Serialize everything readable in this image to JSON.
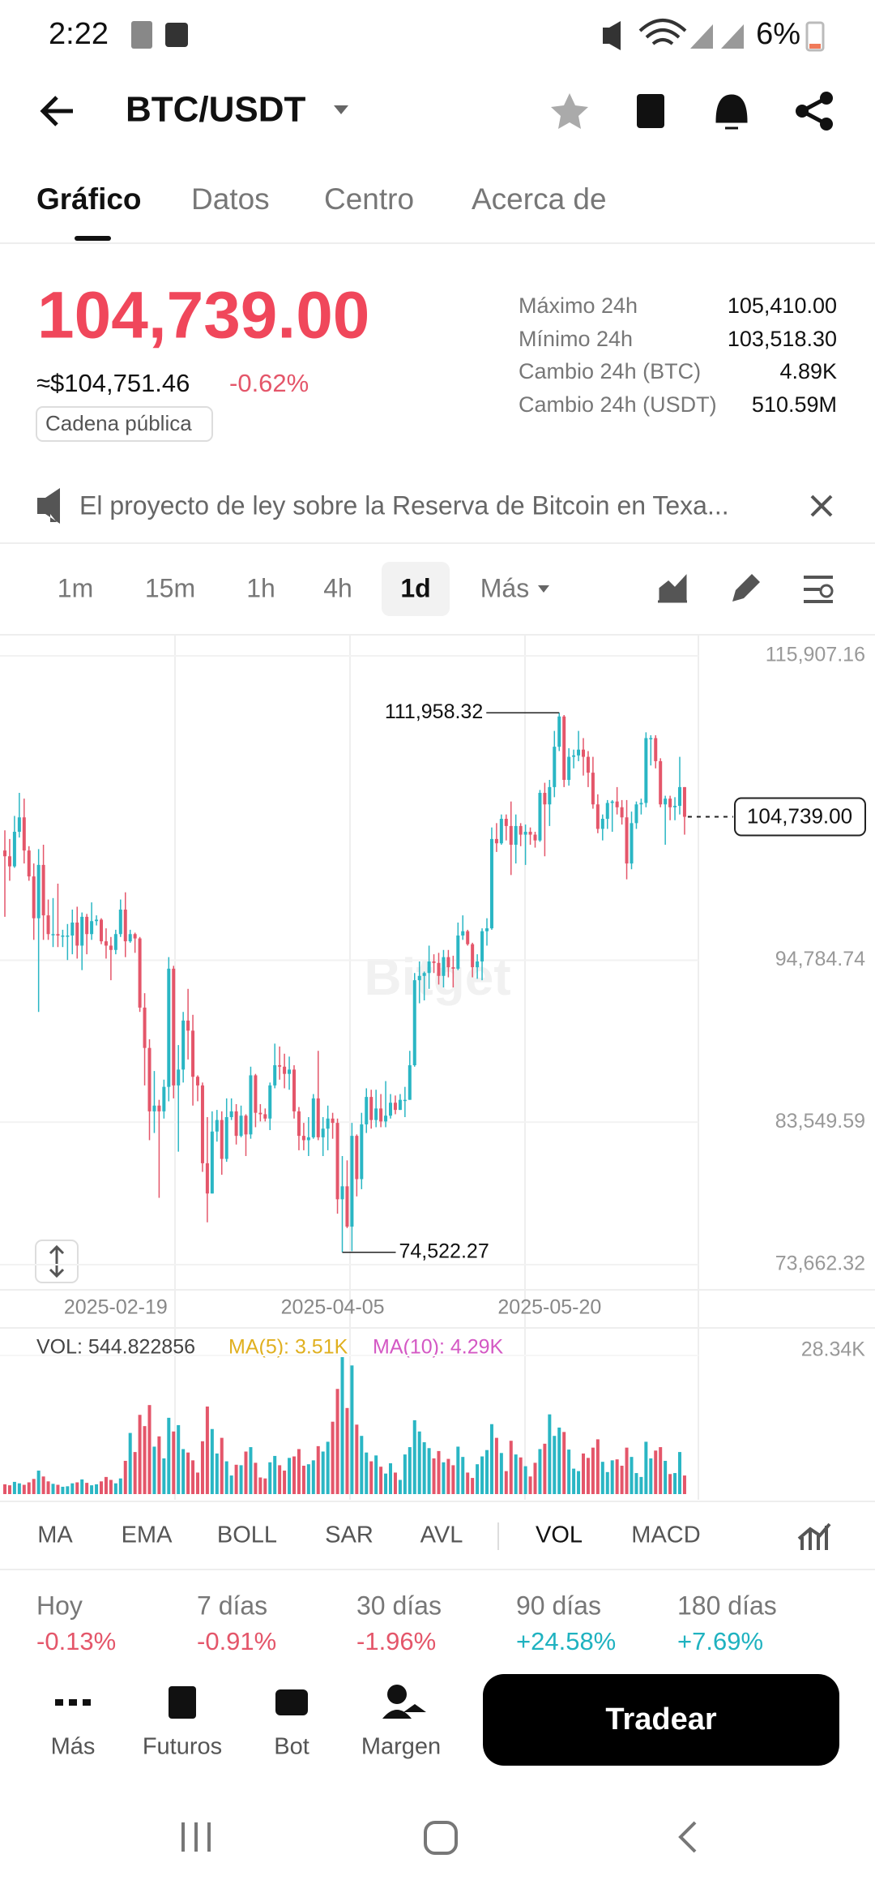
{
  "status": {
    "time": "2:22",
    "battery": "6%"
  },
  "header": {
    "title": "BTC/USDT"
  },
  "tabs": [
    "Gráfico",
    "Datos",
    "Centro",
    "Acerca de"
  ],
  "ticker": {
    "price": "104,739.00",
    "usd": "≈$104,751.46",
    "change": "-0.62%",
    "badge": "Cadena pública",
    "stats": [
      {
        "label": "Máximo 24h",
        "value": "105,410.00"
      },
      {
        "label": "Mínimo 24h",
        "value": "103,518.30"
      },
      {
        "label": "Cambio 24h (BTC)",
        "value": "4.89K"
      },
      {
        "label": "Cambio 24h (USDT)",
        "value": "510.59M"
      }
    ]
  },
  "news": "El proyecto de ley sobre la Reserva de Bitcoin en Texa...",
  "intervals": [
    "1m",
    "15m",
    "1h",
    "4h",
    "1d",
    "Más"
  ],
  "chart_data": {
    "type": "candlestick",
    "watermark": "Bitget",
    "up_color": "#2ab6c4",
    "down_color": "#e4566a",
    "ylim": [
      73662.32,
      115907.16
    ],
    "yticks": [
      {
        "value": 115907.16,
        "label": "115,907.16"
      },
      {
        "value": 94784.74,
        "label": "94,784.74"
      },
      {
        "value": 83549.59,
        "label": "83,549.59"
      },
      {
        "value": 73662.32,
        "label": "73,662.32"
      }
    ],
    "xticks": [
      "2025-02-19",
      "2025-04-05",
      "2025-05-20"
    ],
    "last_price": {
      "value": 104739,
      "label": "104,739.00"
    },
    "annotations": [
      {
        "value": 111958.32,
        "label": "111,958.32"
      },
      {
        "value": 74522.27,
        "label": "74,522.27"
      }
    ],
    "x": [
      "2025-01-27",
      "2025-01-28",
      "2025-01-29",
      "2025-01-30",
      "2025-01-31",
      "2025-02-01",
      "2025-02-02",
      "2025-02-03",
      "2025-02-04",
      "2025-02-05",
      "2025-02-06",
      "2025-02-07",
      "2025-02-08",
      "2025-02-09",
      "2025-02-10",
      "2025-02-11",
      "2025-02-12",
      "2025-02-13",
      "2025-02-14",
      "2025-02-15",
      "2025-02-16",
      "2025-02-17",
      "2025-02-18",
      "2025-02-19",
      "2025-02-20",
      "2025-02-21",
      "2025-02-22",
      "2025-02-23",
      "2025-02-24",
      "2025-02-25",
      "2025-02-26",
      "2025-02-27",
      "2025-02-28",
      "2025-03-01",
      "2025-03-02",
      "2025-03-03",
      "2025-03-04",
      "2025-03-05",
      "2025-03-06",
      "2025-03-07",
      "2025-03-08",
      "2025-03-09",
      "2025-03-10",
      "2025-03-11",
      "2025-03-12",
      "2025-03-13",
      "2025-03-14",
      "2025-03-15",
      "2025-03-16",
      "2025-03-17",
      "2025-03-18",
      "2025-03-19",
      "2025-03-20",
      "2025-03-21",
      "2025-03-22",
      "2025-03-23",
      "2025-03-24",
      "2025-03-25",
      "2025-03-26",
      "2025-03-27",
      "2025-03-28",
      "2025-03-29",
      "2025-03-30",
      "2025-03-31",
      "2025-04-01",
      "2025-04-02",
      "2025-04-03",
      "2025-04-04",
      "2025-04-05",
      "2025-04-06",
      "2025-04-07",
      "2025-04-08",
      "2025-04-09",
      "2025-04-10",
      "2025-04-11",
      "2025-04-12",
      "2025-04-13",
      "2025-04-14",
      "2025-04-15",
      "2025-04-16",
      "2025-04-17",
      "2025-04-18",
      "2025-04-19",
      "2025-04-20",
      "2025-04-21",
      "2025-04-22",
      "2025-04-23",
      "2025-04-24",
      "2025-04-25",
      "2025-04-26",
      "2025-04-27",
      "2025-04-28",
      "2025-04-29",
      "2025-04-30",
      "2025-05-01",
      "2025-05-02",
      "2025-05-03",
      "2025-05-04",
      "2025-05-05",
      "2025-05-06",
      "2025-05-07",
      "2025-05-08",
      "2025-05-09",
      "2025-05-10",
      "2025-05-11",
      "2025-05-12",
      "2025-05-13",
      "2025-05-14",
      "2025-05-15",
      "2025-05-16",
      "2025-05-17",
      "2025-05-18",
      "2025-05-19",
      "2025-05-20",
      "2025-05-21",
      "2025-05-22",
      "2025-05-23",
      "2025-05-24",
      "2025-05-25",
      "2025-05-26",
      "2025-05-27",
      "2025-05-28",
      "2025-05-29",
      "2025-05-30",
      "2025-05-31",
      "2025-06-01",
      "2025-06-02",
      "2025-06-03",
      "2025-06-04",
      "2025-06-05",
      "2025-06-06",
      "2025-06-07",
      "2025-06-08",
      "2025-06-09",
      "2025-06-10",
      "2025-06-11",
      "2025-06-12",
      "2025-06-13",
      "2025-06-14",
      "2025-06-15",
      "2025-06-16",
      "2025-06-17"
    ],
    "candles": [
      [
        102400,
        103800,
        97800,
        102000
      ],
      [
        102000,
        103200,
        100300,
        101300
      ],
      [
        101300,
        104800,
        101200,
        103700
      ],
      [
        103700,
        106400,
        103300,
        104700
      ],
      [
        104700,
        106000,
        101500,
        102400
      ],
      [
        102400,
        102700,
        100300,
        100600
      ],
      [
        100600,
        101500,
        96200,
        97700
      ],
      [
        97700,
        102500,
        91200,
        101400
      ],
      [
        101400,
        102800,
        96200,
        97900
      ],
      [
        97900,
        99000,
        96200,
        96600
      ],
      [
        96600,
        99100,
        95700,
        96600
      ],
      [
        96600,
        100100,
        95700,
        96500
      ],
      [
        96500,
        96900,
        95700,
        96500
      ],
      [
        96500,
        97300,
        94800,
        96500
      ],
      [
        96500,
        98300,
        95200,
        97400
      ],
      [
        97400,
        98500,
        94900,
        95800
      ],
      [
        95800,
        98100,
        94100,
        97800
      ],
      [
        97800,
        98000,
        95200,
        96600
      ],
      [
        96600,
        98800,
        96200,
        97500
      ],
      [
        97500,
        97900,
        97200,
        97600
      ],
      [
        97600,
        97700,
        95900,
        96100
      ],
      [
        96100,
        97000,
        94900,
        95800
      ],
      [
        95800,
        96400,
        93400,
        95500
      ],
      [
        95500,
        96900,
        95200,
        96600
      ],
      [
        96600,
        99000,
        96400,
        98300
      ],
      [
        98300,
        99500,
        95000,
        96100
      ],
      [
        96100,
        96900,
        96000,
        96600
      ],
      [
        96600,
        96700,
        95300,
        96300
      ],
      [
        96300,
        96400,
        91200,
        91500
      ],
      [
        91500,
        92500,
        86100,
        88700
      ],
      [
        88700,
        89300,
        82300,
        84300
      ],
      [
        84300,
        87100,
        82800,
        84700
      ],
      [
        84700,
        85100,
        78300,
        84300
      ],
      [
        84300,
        86500,
        83800,
        86000
      ],
      [
        86000,
        95000,
        85000,
        94200
      ],
      [
        94200,
        94400,
        85200,
        86100
      ],
      [
        86100,
        88900,
        81500,
        87200
      ],
      [
        87200,
        91200,
        86300,
        90600
      ],
      [
        90600,
        92800,
        87900,
        89900
      ],
      [
        89900,
        91000,
        84700,
        86700
      ],
      [
        86700,
        86800,
        85000,
        86100
      ],
      [
        86100,
        86300,
        80100,
        80700
      ],
      [
        80700,
        83900,
        76600,
        78600
      ],
      [
        78600,
        84300,
        78600,
        82900
      ],
      [
        82900,
        84400,
        82200,
        83700
      ],
      [
        83700,
        84300,
        79900,
        81000
      ],
      [
        81000,
        85200,
        80800,
        83900
      ],
      [
        83900,
        85200,
        83700,
        84300
      ],
      [
        84300,
        84800,
        82000,
        82600
      ],
      [
        82600,
        84700,
        82500,
        84000
      ],
      [
        84000,
        84100,
        81200,
        82700
      ],
      [
        82700,
        87400,
        82400,
        86800
      ],
      [
        86800,
        86900,
        83200,
        84200
      ],
      [
        84200,
        84800,
        83600,
        84100
      ],
      [
        84100,
        84500,
        83600,
        83800
      ],
      [
        83800,
        86300,
        83000,
        86100
      ],
      [
        86100,
        89000,
        85900,
        87500
      ],
      [
        87500,
        88800,
        86500,
        87400
      ],
      [
        87400,
        88300,
        85900,
        86900
      ],
      [
        86900,
        88100,
        85800,
        87200
      ],
      [
        87200,
        87500,
        83800,
        84300
      ],
      [
        84300,
        84600,
        81600,
        82600
      ],
      [
        82600,
        83500,
        81600,
        82300
      ],
      [
        82300,
        83900,
        81200,
        82500
      ],
      [
        82500,
        85500,
        82400,
        85200
      ],
      [
        85200,
        88500,
        82300,
        82500
      ],
      [
        82500,
        83900,
        81200,
        83100
      ],
      [
        83100,
        84700,
        81600,
        83800
      ],
      [
        83800,
        84200,
        82400,
        83500
      ],
      [
        83500,
        83800,
        77200,
        78200
      ],
      [
        78200,
        81200,
        74522.27,
        79100
      ],
      [
        79100,
        80900,
        76200,
        76300
      ],
      [
        76300,
        83500,
        74600,
        82600
      ],
      [
        82600,
        82700,
        78400,
        79600
      ],
      [
        79600,
        84200,
        78900,
        83400
      ],
      [
        83400,
        85900,
        82800,
        85300
      ],
      [
        85300,
        85800,
        83100,
        83700
      ],
      [
        83700,
        85800,
        83200,
        84500
      ],
      [
        84500,
        85500,
        83200,
        83600
      ],
      [
        83600,
        86400,
        83200,
        84000
      ],
      [
        84000,
        85500,
        83800,
        84900
      ],
      [
        84900,
        85400,
        84100,
        84400
      ],
      [
        84400,
        85500,
        84400,
        85100
      ],
      [
        85100,
        86000,
        83900,
        85100
      ],
      [
        85100,
        88500,
        85100,
        87500
      ],
      [
        87500,
        93900,
        87400,
        93400
      ],
      [
        93400,
        94700,
        91800,
        93700
      ],
      [
        93700,
        94000,
        92000,
        93900
      ],
      [
        93900,
        95800,
        92800,
        94700
      ],
      [
        94700,
        95200,
        93900,
        94600
      ],
      [
        94600,
        95300,
        93100,
        93700
      ],
      [
        93700,
        95500,
        92900,
        95000
      ],
      [
        95000,
        95500,
        93600,
        94300
      ],
      [
        94300,
        95100,
        92900,
        94200
      ],
      [
        94200,
        97400,
        94100,
        96500
      ],
      [
        96500,
        97900,
        96200,
        96800
      ],
      [
        96800,
        96900,
        95800,
        95900
      ],
      [
        95900,
        96000,
        93600,
        94300
      ],
      [
        94300,
        95200,
        93500,
        94700
      ],
      [
        94700,
        97000,
        93400,
        96800
      ],
      [
        96800,
        97700,
        95800,
        97000
      ],
      [
        97000,
        104000,
        96900,
        103200
      ],
      [
        103200,
        104300,
        102300,
        102900
      ],
      [
        102900,
        104900,
        102800,
        104600
      ],
      [
        104600,
        104900,
        103100,
        104100
      ],
      [
        104100,
        105800,
        100700,
        102800
      ],
      [
        102800,
        104900,
        101500,
        104100
      ],
      [
        104100,
        104300,
        102700,
        103500
      ],
      [
        103500,
        104200,
        101400,
        103700
      ],
      [
        103700,
        104000,
        102800,
        103500
      ],
      [
        103500,
        103700,
        102600,
        103100
      ],
      [
        103100,
        106600,
        103000,
        106400
      ],
      [
        106400,
        107100,
        102000,
        105600
      ],
      [
        105600,
        107300,
        104100,
        106800
      ],
      [
        106800,
        110700,
        106100,
        109600
      ],
      [
        109600,
        111958.32,
        109300,
        111700
      ],
      [
        111700,
        111800,
        106800,
        107300
      ],
      [
        107300,
        109500,
        106900,
        108900
      ],
      [
        108900,
        109400,
        108100,
        109000
      ],
      [
        109000,
        110700,
        108600,
        109400
      ],
      [
        109400,
        110200,
        107600,
        108900
      ],
      [
        108900,
        109300,
        106800,
        107800
      ],
      [
        107800,
        108900,
        105300,
        105600
      ],
      [
        105600,
        106300,
        103600,
        103900
      ],
      [
        103900,
        104900,
        103100,
        104600
      ],
      [
        104600,
        105900,
        103900,
        105700
      ],
      [
        105700,
        105900,
        103700,
        105800
      ],
      [
        105800,
        106800,
        104900,
        105400
      ],
      [
        105400,
        105900,
        104200,
        104700
      ],
      [
        104700,
        105900,
        100400,
        101500
      ],
      [
        101500,
        105100,
        101100,
        104300
      ],
      [
        104300,
        105800,
        103900,
        105600
      ],
      [
        105600,
        106000,
        104900,
        105700
      ],
      [
        105700,
        110600,
        105400,
        110200
      ],
      [
        110200,
        110400,
        108300,
        110200
      ],
      [
        110200,
        110400,
        108100,
        108600
      ],
      [
        108600,
        108800,
        105400,
        105600
      ],
      [
        105600,
        106200,
        102800,
        106000
      ],
      [
        106000,
        106200,
        104500,
        105400
      ],
      [
        105400,
        106100,
        104500,
        105500
      ],
      [
        105500,
        108900,
        104900,
        106800
      ],
      [
        106800,
        106800,
        103500,
        104739
      ]
    ],
    "volume": {
      "label": "VOL: 544.822856",
      "ma5": "MA(5): 3.51K",
      "ma10": "MA(10): 4.29K",
      "ylim": [
        0,
        28340
      ],
      "yticks": [
        {
          "value": 28340,
          "label": "28.34K"
        }
      ],
      "values": [
        2000,
        1800,
        2500,
        2200,
        1900,
        2400,
        3100,
        4800,
        3600,
        2600,
        2100,
        1900,
        1500,
        1600,
        2200,
        2400,
        3000,
        2300,
        1800,
        2000,
        2600,
        3500,
        2900,
        2200,
        3200,
        6800,
        12500,
        8600,
        16200,
        13900,
        18200,
        9700,
        11800,
        7300,
        15600,
        12800,
        14100,
        9200,
        8500,
        6900,
        4400,
        10800,
        17900,
        13300,
        8300,
        11500,
        6700,
        3800,
        6000,
        5900,
        8700,
        9600,
        6400,
        3400,
        3200,
        6500,
        7800,
        5900,
        4800,
        7400,
        7700,
        9200,
        5800,
        6100,
        6900,
        9800,
        8700,
        10700,
        14800,
        21500,
        28000,
        17600,
        26300,
        14200,
        11900,
        8500,
        6700,
        7900,
        5600,
        4200,
        6300,
        4400,
        2900,
        8100,
        9600,
        15100,
        12800,
        10600,
        9400,
        7300,
        8800,
        6500,
        7200,
        5900,
        9700,
        7600,
        4400,
        3300,
        6100,
        7700,
        9000,
        14300,
        11500,
        8400,
        4700,
        10900,
        8100,
        7500,
        5700,
        3600,
        6400,
        9200,
        10300,
        16300,
        11900,
        13600,
        12700,
        9100,
        5200,
        4700,
        8300,
        7400,
        9500,
        11200,
        6600,
        4500,
        6900,
        7100,
        5800,
        9500,
        7600,
        4300,
        3500,
        10700,
        7300,
        8900,
        9600,
        6800,
        4100,
        4300,
        8600,
        3800
      ]
    }
  },
  "indicators": [
    "MA",
    "EMA",
    "BOLL",
    "SAR",
    "AVL",
    "VOL",
    "MACD"
  ],
  "performance": [
    {
      "label": "Hoy",
      "value": "-0.13%"
    },
    {
      "label": "7 días",
      "value": "-0.91%"
    },
    {
      "label": "30 días",
      "value": "-1.96%"
    },
    {
      "label": "90 días",
      "value": "+24.58%"
    },
    {
      "label": "180 días",
      "value": "+7.69%"
    }
  ],
  "nav": [
    "Más",
    "Futuros",
    "Bot",
    "Margen"
  ],
  "trade_button": "Tradear"
}
